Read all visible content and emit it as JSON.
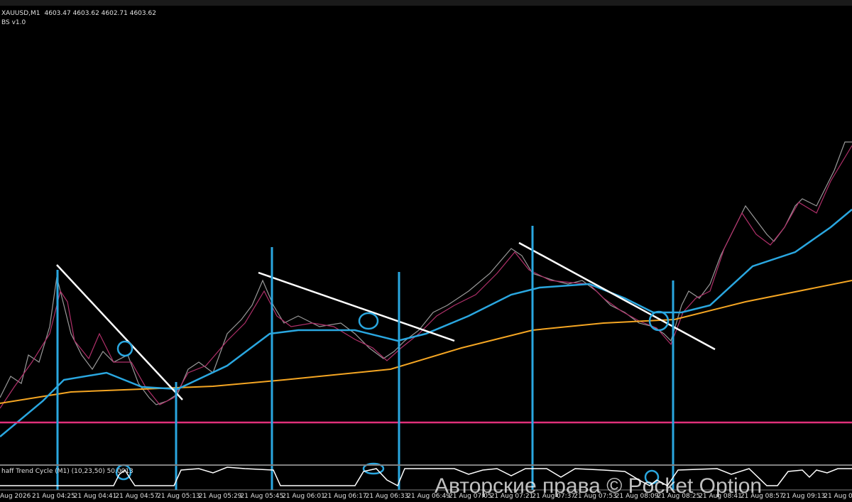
{
  "header": {
    "symbol": "XAUUSD,M1",
    "ohlc": "4603.47 4603.62 4602.71 4603.62",
    "indicator": "BS v1.0"
  },
  "subwindow": {
    "label": "haff Trend Cycle (M1) (10,23,50) 50.0013"
  },
  "time_axis": [
    "Aug 2026",
    "21 Aug 04:25",
    "21 Aug 04:41",
    "21 Aug 04:57",
    "21 Aug 05:13",
    "21 Aug 05:29",
    "21 Aug 05:45",
    "21 Aug 06:01",
    "21 Aug 06:17",
    "21 Aug 06:33",
    "21 Aug 06:49",
    "21 Aug 07:05",
    "21 Aug 07:21",
    "21 Aug 07:37",
    "21 Aug 07:53",
    "21 Aug 08:09",
    "21 Aug 08:25",
    "21 Aug 08:41",
    "21 Aug 08:57",
    "21 Aug 09:13",
    "21 Aug 09"
  ],
  "watermark": "Авторские права © Pocket Option"
}
